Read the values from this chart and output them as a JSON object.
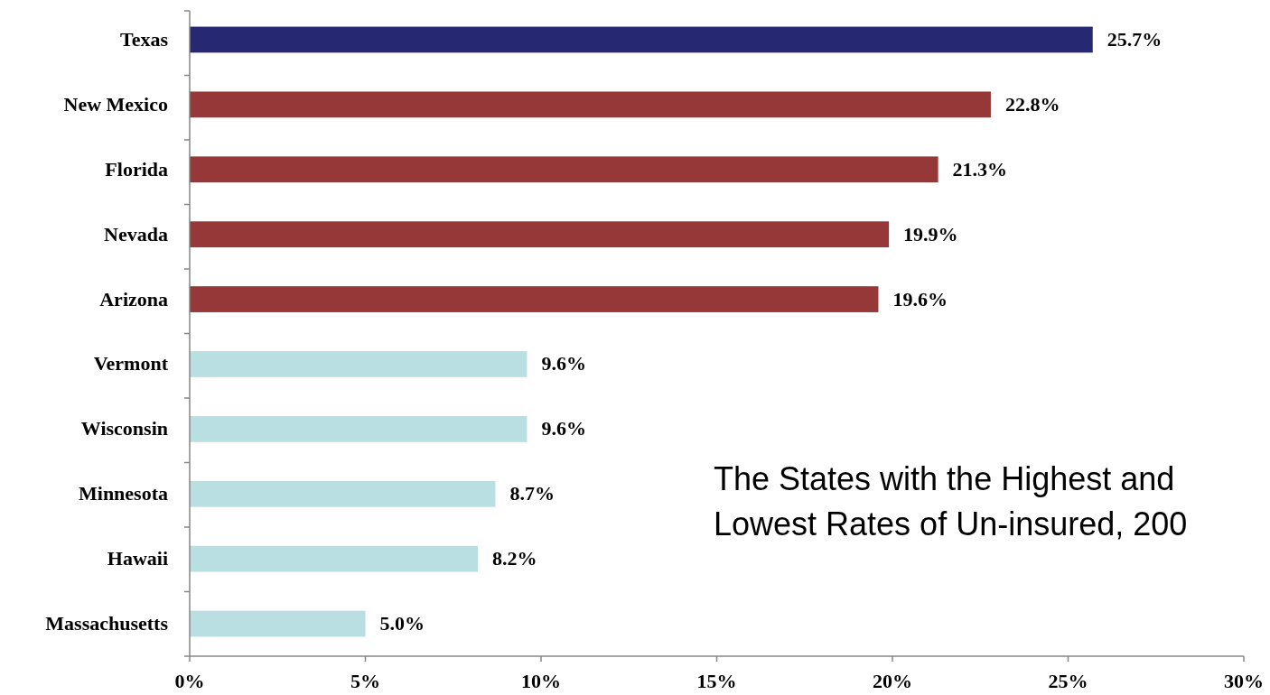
{
  "chart_data": {
    "type": "bar",
    "orientation": "horizontal",
    "categories": [
      "Texas",
      "New Mexico",
      "Florida",
      "Nevada",
      "Arizona",
      "Vermont",
      "Wisconsin",
      "Minnesota",
      "Hawaii",
      "Massachusetts"
    ],
    "values": [
      25.7,
      22.8,
      21.3,
      19.9,
      19.6,
      9.6,
      9.6,
      8.7,
      8.2,
      5.0
    ],
    "colors": [
      "#262872",
      "#963837",
      "#963837",
      "#963837",
      "#963837",
      "#b9dfe2",
      "#b9dfe2",
      "#b9dfe2",
      "#b9dfe2",
      "#b9dfe2"
    ],
    "value_labels": [
      "25.7%",
      "22.8%",
      "21.3%",
      "19.9%",
      "19.6%",
      "9.6%",
      "9.6%",
      "8.7%",
      "8.2%",
      "5.0%"
    ],
    "xlim": [
      0,
      30
    ],
    "xticks": [
      {
        "value": 0,
        "label": "0%"
      },
      {
        "value": 5,
        "label": "5%"
      },
      {
        "value": 10,
        "label": "10%"
      },
      {
        "value": 15,
        "label": "15%"
      },
      {
        "value": 20,
        "label": "20%"
      },
      {
        "value": 25,
        "label": "25%"
      },
      {
        "value": 30,
        "label": "30%"
      }
    ],
    "annotations": [
      "The States with the Highest and Lowest Rates of Un-insured, 200"
    ]
  }
}
